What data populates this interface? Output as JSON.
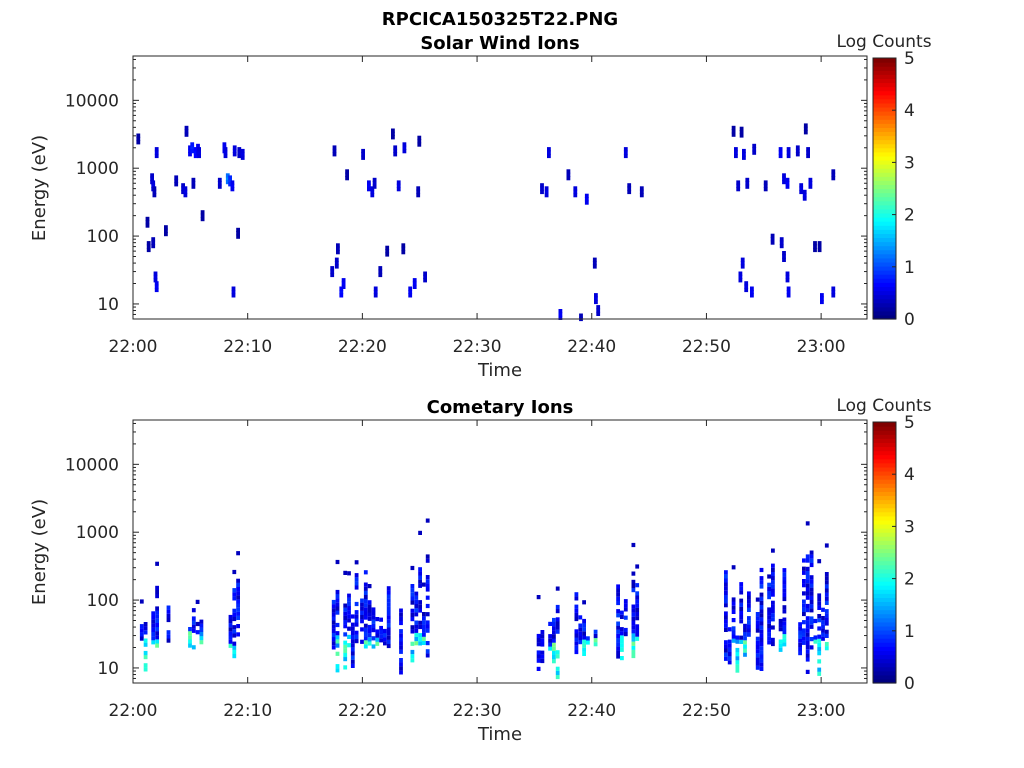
{
  "figure": {
    "title": "RPCICA150325T22.PNG"
  },
  "colors": {
    "axis": "#262626",
    "background": "#ffffff"
  },
  "chart_data": [
    {
      "type": "heatmap",
      "title": "Solar Wind Ions",
      "xlabel": "Time",
      "ylabel": "Energy (eV)",
      "y_scale": "log",
      "ylim": [
        6,
        45000
      ],
      "yticks": [
        10,
        100,
        1000,
        10000
      ],
      "ytick_labels": [
        "10",
        "100",
        "1000",
        "10000"
      ],
      "xlim": [
        "22:00",
        "23:04"
      ],
      "xticks": [
        "22:00",
        "22:10",
        "22:20",
        "22:30",
        "22:40",
        "22:50",
        "23:00"
      ],
      "colorbar": {
        "label": "Log Counts",
        "range": [
          0,
          5
        ],
        "ticks": [
          "0",
          "1",
          "2",
          "3",
          "4",
          "5"
        ],
        "colormap": "jet"
      },
      "cells": [
        [
          0.3,
          2700,
          0.2
        ],
        [
          1.1,
          160,
          0.2
        ],
        [
          1.5,
          700,
          0.4
        ],
        [
          1.6,
          550,
          0.5
        ],
        [
          1.7,
          450,
          0.3
        ],
        [
          1.6,
          80,
          0.3
        ],
        [
          1.8,
          25,
          0.5
        ],
        [
          1.9,
          18,
          0.6
        ],
        [
          1.9,
          1700,
          0.5
        ],
        [
          2.7,
          120,
          0.2
        ],
        [
          1.2,
          70,
          0.2
        ],
        [
          3.6,
          650,
          0.3
        ],
        [
          4.2,
          500,
          0.4
        ],
        [
          4.4,
          450,
          0.5
        ],
        [
          4.5,
          3500,
          0.3
        ],
        [
          4.8,
          1800,
          0.6
        ],
        [
          5.0,
          2000,
          0.8
        ],
        [
          5.3,
          1700,
          0.7
        ],
        [
          5.5,
          1900,
          0.6
        ],
        [
          5.6,
          1700,
          0.5
        ],
        [
          5.1,
          600,
          0.3
        ],
        [
          5.9,
          200,
          0.2
        ],
        [
          7.4,
          600,
          0.4
        ],
        [
          7.8,
          2000,
          0.6
        ],
        [
          7.9,
          1700,
          0.5
        ],
        [
          8.1,
          700,
          1.3
        ],
        [
          8.3,
          650,
          0.9
        ],
        [
          8.5,
          550,
          0.6
        ],
        [
          8.7,
          1800,
          0.5
        ],
        [
          8.6,
          15,
          0.5
        ],
        [
          9.0,
          110,
          0.2
        ],
        [
          9.1,
          1700,
          0.4
        ],
        [
          9.4,
          1600,
          0.5
        ],
        [
          17.4,
          1800,
          0.3
        ],
        [
          17.2,
          30,
          0.4
        ],
        [
          17.6,
          40,
          0.4
        ],
        [
          17.7,
          65,
          0.3
        ],
        [
          18.0,
          15,
          0.7
        ],
        [
          18.2,
          20,
          0.6
        ],
        [
          18.5,
          800,
          0.2
        ],
        [
          19.9,
          1600,
          0.4
        ],
        [
          20.4,
          550,
          0.6
        ],
        [
          20.7,
          450,
          0.5
        ],
        [
          20.9,
          600,
          0.4
        ],
        [
          21.0,
          15,
          0.5
        ],
        [
          21.4,
          30,
          0.3
        ],
        [
          22.0,
          60,
          0.2
        ],
        [
          22.5,
          3200,
          0.2
        ],
        [
          22.7,
          1800,
          0.4
        ],
        [
          23.0,
          550,
          0.5
        ],
        [
          23.5,
          2000,
          0.5
        ],
        [
          23.4,
          65,
          0.2
        ],
        [
          24.0,
          15,
          0.6
        ],
        [
          24.4,
          20,
          0.6
        ],
        [
          24.7,
          450,
          0.3
        ],
        [
          24.8,
          2500,
          0.2
        ],
        [
          25.3,
          25,
          0.4
        ],
        [
          35.5,
          500,
          0.4
        ],
        [
          35.9,
          450,
          0.5
        ],
        [
          36.1,
          1700,
          0.5
        ],
        [
          37.1,
          7,
          0.6
        ],
        [
          37.8,
          800,
          0.3
        ],
        [
          38.4,
          450,
          0.5
        ],
        [
          38.9,
          6,
          0.3
        ],
        [
          39.4,
          350,
          0.6
        ],
        [
          40.1,
          40,
          0.3
        ],
        [
          40.2,
          12,
          0.5
        ],
        [
          40.4,
          8,
          0.4
        ],
        [
          42.8,
          1700,
          0.5
        ],
        [
          43.1,
          500,
          0.3
        ],
        [
          44.2,
          450,
          0.3
        ],
        [
          52.2,
          3500,
          0.2
        ],
        [
          52.4,
          1700,
          0.5
        ],
        [
          52.6,
          550,
          0.4
        ],
        [
          52.9,
          3400,
          0.2
        ],
        [
          53.1,
          1600,
          0.5
        ],
        [
          53.4,
          600,
          0.4
        ],
        [
          53.0,
          40,
          0.5
        ],
        [
          52.8,
          25,
          0.5
        ],
        [
          53.3,
          18,
          0.5
        ],
        [
          53.8,
          15,
          0.6
        ],
        [
          54.0,
          1900,
          0.4
        ],
        [
          55.0,
          550,
          0.3
        ],
        [
          55.6,
          90,
          0.3
        ],
        [
          56.3,
          1700,
          0.6
        ],
        [
          56.6,
          700,
          0.5
        ],
        [
          56.9,
          600,
          0.6
        ],
        [
          57.0,
          1700,
          0.5
        ],
        [
          56.4,
          80,
          0.4
        ],
        [
          56.6,
          50,
          0.4
        ],
        [
          56.9,
          25,
          0.5
        ],
        [
          57.0,
          15,
          0.6
        ],
        [
          57.8,
          1800,
          0.4
        ],
        [
          58.1,
          500,
          0.5
        ],
        [
          58.4,
          400,
          0.5
        ],
        [
          58.7,
          1700,
          0.4
        ],
        [
          58.5,
          3800,
          0.2
        ],
        [
          58.9,
          600,
          0.5
        ],
        [
          59.3,
          70,
          0.2
        ],
        [
          59.7,
          70,
          0.2
        ],
        [
          59.9,
          12,
          0.6
        ],
        [
          60.9,
          800,
          0.3
        ],
        [
          60.9,
          15,
          0.5
        ]
      ]
    },
    {
      "type": "heatmap",
      "title": "Cometary Ions",
      "xlabel": "Time",
      "ylabel": "Energy (eV)",
      "y_scale": "log",
      "ylim": [
        6,
        45000
      ],
      "yticks": [
        10,
        100,
        1000,
        10000
      ],
      "ytick_labels": [
        "10",
        "100",
        "1000",
        "10000"
      ],
      "xlim": [
        "22:00",
        "23:04"
      ],
      "xticks": [
        "22:00",
        "22:10",
        "22:20",
        "22:30",
        "22:40",
        "22:50",
        "23:00"
      ],
      "colorbar": {
        "label": "Log Counts",
        "range": [
          0,
          5
        ],
        "ticks": [
          "0",
          "1",
          "2",
          "3",
          "4",
          "5"
        ],
        "colormap": "jet"
      },
      "clusters": [
        {
          "x": [
            0.6,
            3.2
          ],
          "emin": 8,
          "emax": 160,
          "seed": 1,
          "hot": [
            1.5,
            12
          ]
        },
        {
          "x": [
            4.8,
            6.5
          ],
          "emin": 15,
          "emax": 130,
          "seed": 2,
          "hot": [
            5.2,
            15
          ]
        },
        {
          "x": [
            8.0,
            9.6
          ],
          "emin": 8,
          "emax": 220,
          "seed": 3,
          "hot": [
            8.5,
            10
          ]
        },
        {
          "x": [
            17.0,
            19.6
          ],
          "emin": 8,
          "emax": 260,
          "seed": 4,
          "hot": [
            18.2,
            14
          ]
        },
        {
          "x": [
            19.8,
            22.3
          ],
          "emin": 8,
          "emax": 350,
          "seed": 5,
          "hot": [
            20.6,
            12
          ]
        },
        {
          "x": [
            23.2,
            25.8
          ],
          "emin": 8,
          "emax": 500,
          "seed": 6,
          "hot": [
            24.5,
            14
          ]
        },
        {
          "x": [
            35.2,
            37.6
          ],
          "emin": 6,
          "emax": 400,
          "seed": 7,
          "hot": [
            36.9,
            10
          ]
        },
        {
          "x": [
            38.5,
            40.6
          ],
          "emin": 8,
          "emax": 150,
          "seed": 8,
          "hot": [
            39.8,
            12
          ]
        },
        {
          "x": [
            41.8,
            44.2
          ],
          "emin": 8,
          "emax": 500,
          "seed": 9,
          "hot": [
            43.2,
            14
          ]
        },
        {
          "x": [
            51.2,
            54.0
          ],
          "emin": 8,
          "emax": 350,
          "seed": 10,
          "hot": [
            53.0,
            12
          ]
        },
        {
          "x": [
            54.3,
            57.5
          ],
          "emin": 8,
          "emax": 400,
          "seed": 11,
          "hot": [
            56.5,
            14
          ]
        },
        {
          "x": [
            58.0,
            61.0
          ],
          "emin": 8,
          "emax": 550,
          "seed": 12,
          "hot": [
            60.0,
            12
          ]
        }
      ]
    }
  ]
}
